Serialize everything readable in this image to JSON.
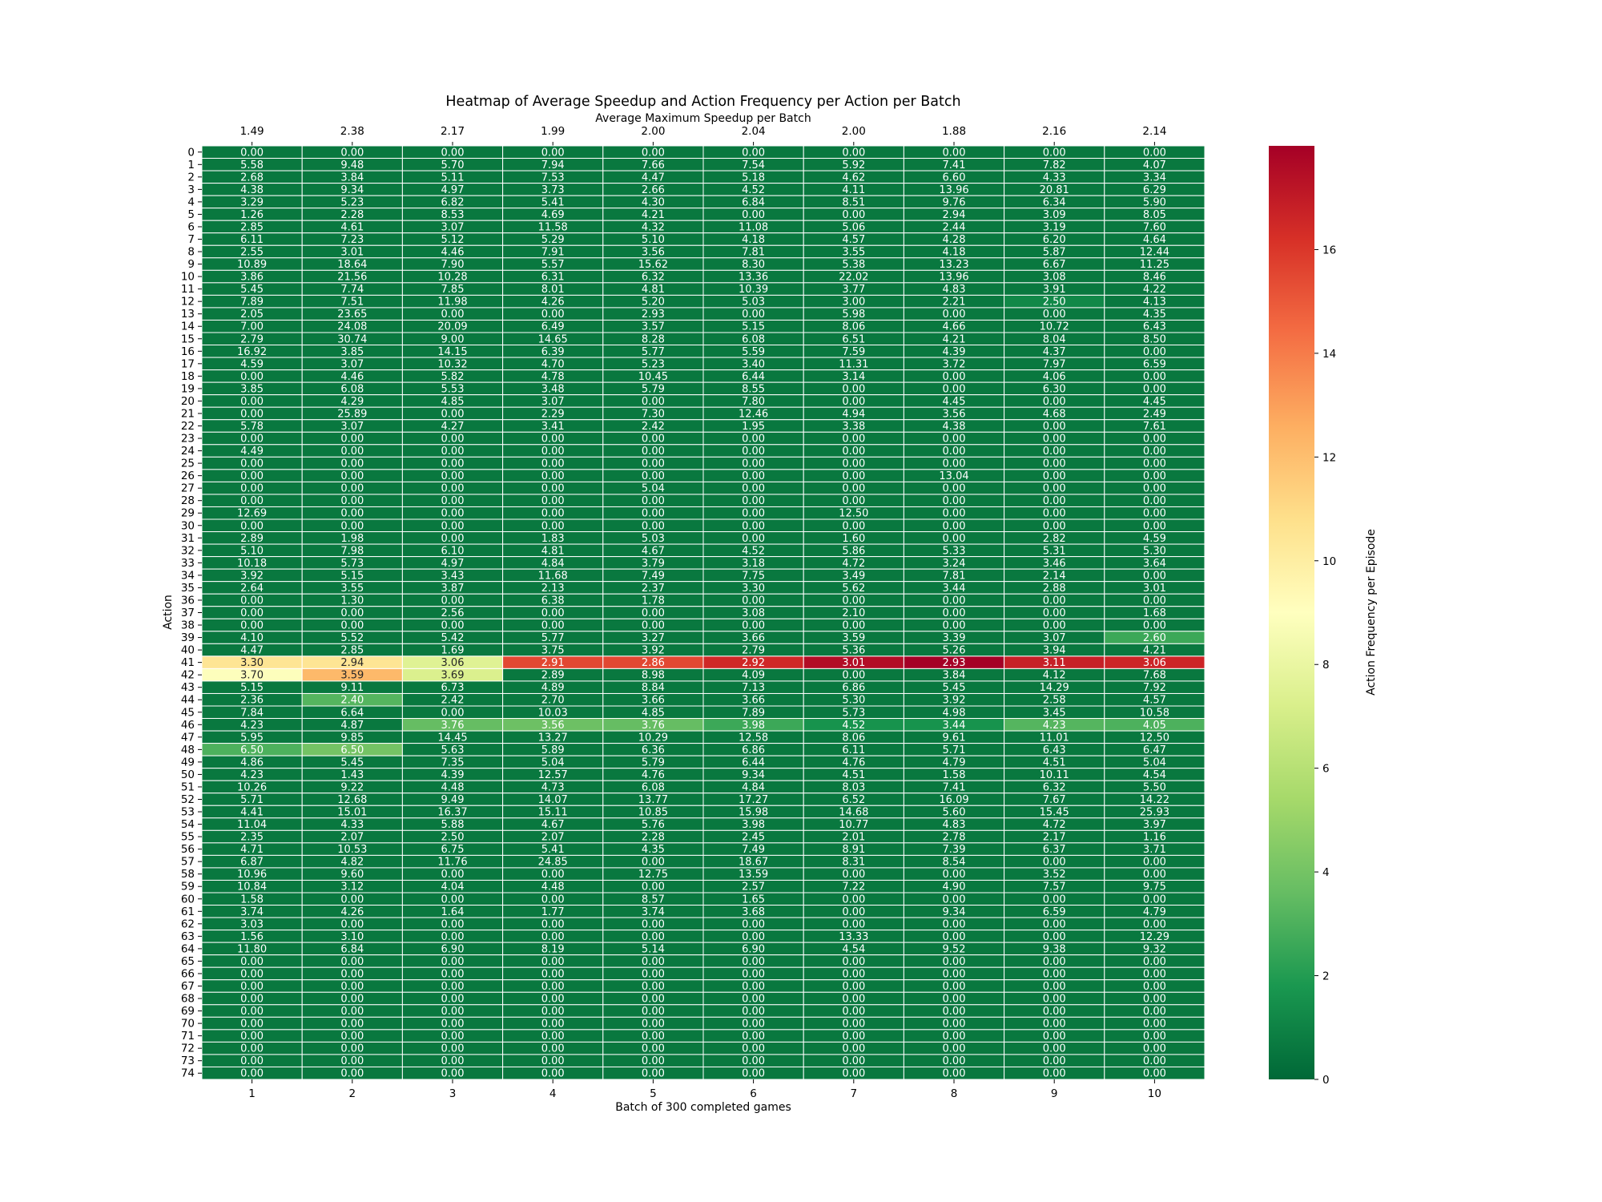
{
  "chart_data": {
    "type": "heatmap",
    "title": "Heatmap of Average Speedup and Action Frequency per Action per Batch",
    "top_axis_label": "Average Maximum Speedup per Batch",
    "top_tick_labels": [
      "1.49",
      "2.38",
      "2.17",
      "1.99",
      "2.00",
      "2.04",
      "2.00",
      "1.88",
      "2.16",
      "2.14"
    ],
    "xlabel": "Batch of 300 completed games",
    "ylabel": "Action",
    "x_categories": [
      "1",
      "2",
      "3",
      "4",
      "5",
      "6",
      "7",
      "8",
      "9",
      "10"
    ],
    "y_categories": [
      "0",
      "1",
      "2",
      "3",
      "4",
      "5",
      "6",
      "7",
      "8",
      "9",
      "10",
      "11",
      "12",
      "13",
      "14",
      "15",
      "16",
      "17",
      "18",
      "19",
      "20",
      "21",
      "22",
      "23",
      "24",
      "25",
      "26",
      "27",
      "28",
      "29",
      "30",
      "31",
      "32",
      "33",
      "34",
      "35",
      "36",
      "37",
      "38",
      "39",
      "40",
      "41",
      "42",
      "43",
      "44",
      "45",
      "46",
      "47",
      "48",
      "49",
      "50",
      "51",
      "52",
      "53",
      "54",
      "55",
      "56",
      "57",
      "58",
      "59",
      "60",
      "61",
      "62",
      "63",
      "64",
      "65",
      "66",
      "67",
      "68",
      "69",
      "70",
      "71",
      "72",
      "73",
      "74"
    ],
    "cell_text": [
      [
        "0.00",
        "0.00",
        "0.00",
        "0.00",
        "0.00",
        "0.00",
        "0.00",
        "0.00",
        "0.00",
        "0.00"
      ],
      [
        "5.58",
        "9.48",
        "5.70",
        "7.94",
        "7.66",
        "7.54",
        "5.92",
        "7.41",
        "7.82",
        "4.07"
      ],
      [
        "2.68",
        "3.84",
        "5.11",
        "7.53",
        "4.47",
        "5.18",
        "4.62",
        "6.60",
        "4.33",
        "3.34"
      ],
      [
        "4.38",
        "9.34",
        "4.97",
        "3.73",
        "2.66",
        "4.52",
        "4.11",
        "13.96",
        "20.81",
        "6.29"
      ],
      [
        "3.29",
        "5.23",
        "6.82",
        "5.41",
        "4.30",
        "6.84",
        "8.51",
        "9.76",
        "6.34",
        "5.90"
      ],
      [
        "1.26",
        "2.28",
        "8.53",
        "4.69",
        "4.21",
        "0.00",
        "0.00",
        "2.94",
        "3.09",
        "8.05"
      ],
      [
        "2.85",
        "4.61",
        "3.07",
        "11.58",
        "4.32",
        "11.08",
        "5.06",
        "2.44",
        "3.19",
        "7.60"
      ],
      [
        "6.11",
        "7.23",
        "5.12",
        "5.29",
        "5.10",
        "4.18",
        "4.57",
        "4.28",
        "6.20",
        "4.64"
      ],
      [
        "2.55",
        "3.01",
        "4.46",
        "7.91",
        "3.56",
        "7.81",
        "3.55",
        "4.18",
        "5.87",
        "12.44"
      ],
      [
        "10.89",
        "18.64",
        "7.90",
        "5.57",
        "15.62",
        "8.30",
        "5.38",
        "13.23",
        "6.67",
        "11.25"
      ],
      [
        "3.86",
        "21.56",
        "10.28",
        "6.31",
        "6.32",
        "13.36",
        "22.02",
        "13.96",
        "3.08",
        "8.46"
      ],
      [
        "5.45",
        "7.74",
        "7.85",
        "8.01",
        "4.81",
        "10.39",
        "3.77",
        "4.83",
        "3.91",
        "4.22"
      ],
      [
        "7.89",
        "7.51",
        "11.98",
        "4.26",
        "5.20",
        "5.03",
        "3.00",
        "2.21",
        "2.50",
        "4.13"
      ],
      [
        "2.05",
        "23.65",
        "0.00",
        "0.00",
        "2.93",
        "0.00",
        "5.98",
        "0.00",
        "0.00",
        "4.35"
      ],
      [
        "7.00",
        "24.08",
        "20.09",
        "6.49",
        "3.57",
        "5.15",
        "8.06",
        "4.66",
        "10.72",
        "6.43"
      ],
      [
        "2.79",
        "30.74",
        "9.00",
        "14.65",
        "8.28",
        "6.08",
        "6.51",
        "4.21",
        "8.04",
        "8.50"
      ],
      [
        "16.92",
        "3.85",
        "14.15",
        "6.39",
        "5.77",
        "5.59",
        "7.59",
        "4.39",
        "4.37",
        "0.00"
      ],
      [
        "4.59",
        "3.07",
        "10.32",
        "4.70",
        "5.23",
        "3.40",
        "11.31",
        "3.72",
        "7.97",
        "6.59"
      ],
      [
        "0.00",
        "4.46",
        "5.82",
        "4.78",
        "10.45",
        "6.44",
        "3.14",
        "0.00",
        "4.06",
        "0.00"
      ],
      [
        "3.85",
        "6.08",
        "5.53",
        "3.48",
        "5.79",
        "8.55",
        "0.00",
        "0.00",
        "6.30",
        "0.00"
      ],
      [
        "0.00",
        "4.29",
        "4.85",
        "3.07",
        "0.00",
        "7.80",
        "0.00",
        "4.45",
        "0.00",
        "4.45"
      ],
      [
        "0.00",
        "25.89",
        "0.00",
        "2.29",
        "7.30",
        "12.46",
        "4.94",
        "3.56",
        "4.68",
        "2.49"
      ],
      [
        "5.78",
        "3.07",
        "4.27",
        "3.41",
        "2.42",
        "1.95",
        "3.38",
        "4.38",
        "0.00",
        "7.61"
      ],
      [
        "0.00",
        "0.00",
        "0.00",
        "0.00",
        "0.00",
        "0.00",
        "0.00",
        "0.00",
        "0.00",
        "0.00"
      ],
      [
        "4.49",
        "0.00",
        "0.00",
        "0.00",
        "0.00",
        "0.00",
        "0.00",
        "0.00",
        "0.00",
        "0.00"
      ],
      [
        "0.00",
        "0.00",
        "0.00",
        "0.00",
        "0.00",
        "0.00",
        "0.00",
        "0.00",
        "0.00",
        "0.00"
      ],
      [
        "0.00",
        "0.00",
        "0.00",
        "0.00",
        "0.00",
        "0.00",
        "0.00",
        "13.04",
        "0.00",
        "0.00"
      ],
      [
        "0.00",
        "0.00",
        "0.00",
        "0.00",
        "5.04",
        "0.00",
        "0.00",
        "0.00",
        "0.00",
        "0.00"
      ],
      [
        "0.00",
        "0.00",
        "0.00",
        "0.00",
        "0.00",
        "0.00",
        "0.00",
        "0.00",
        "0.00",
        "0.00"
      ],
      [
        "12.69",
        "0.00",
        "0.00",
        "0.00",
        "0.00",
        "0.00",
        "12.50",
        "0.00",
        "0.00",
        "0.00"
      ],
      [
        "0.00",
        "0.00",
        "0.00",
        "0.00",
        "0.00",
        "0.00",
        "0.00",
        "0.00",
        "0.00",
        "0.00"
      ],
      [
        "2.89",
        "1.98",
        "0.00",
        "1.83",
        "5.03",
        "0.00",
        "1.60",
        "0.00",
        "2.82",
        "4.59"
      ],
      [
        "5.10",
        "7.98",
        "6.10",
        "4.81",
        "4.67",
        "4.52",
        "5.86",
        "5.33",
        "5.31",
        "5.30"
      ],
      [
        "10.18",
        "5.73",
        "4.97",
        "4.84",
        "3.79",
        "3.18",
        "4.72",
        "3.24",
        "3.46",
        "3.64"
      ],
      [
        "3.92",
        "5.15",
        "3.43",
        "11.68",
        "7.49",
        "7.75",
        "3.49",
        "7.81",
        "2.14",
        "0.00"
      ],
      [
        "2.64",
        "3.55",
        "3.87",
        "2.13",
        "2.37",
        "3.30",
        "5.62",
        "3.44",
        "2.88",
        "3.01"
      ],
      [
        "0.00",
        "1.30",
        "0.00",
        "6.38",
        "1.78",
        "0.00",
        "0.00",
        "0.00",
        "0.00",
        "0.00"
      ],
      [
        "0.00",
        "0.00",
        "2.56",
        "0.00",
        "0.00",
        "3.08",
        "2.10",
        "0.00",
        "0.00",
        "1.68"
      ],
      [
        "0.00",
        "0.00",
        "0.00",
        "0.00",
        "0.00",
        "0.00",
        "0.00",
        "0.00",
        "0.00",
        "0.00"
      ],
      [
        "4.10",
        "5.52",
        "5.42",
        "5.77",
        "3.27",
        "3.66",
        "3.59",
        "3.39",
        "3.07",
        "2.60"
      ],
      [
        "4.47",
        "2.85",
        "1.69",
        "3.75",
        "3.92",
        "2.79",
        "5.36",
        "5.26",
        "3.94",
        "4.21"
      ],
      [
        "3.30",
        "2.94",
        "3.06",
        "2.91",
        "2.86",
        "2.92",
        "3.01",
        "2.93",
        "3.11",
        "3.06"
      ],
      [
        "3.70",
        "3.59",
        "3.69",
        "2.89",
        "8.98",
        "4.09",
        "0.00",
        "3.84",
        "4.12",
        "7.68"
      ],
      [
        "5.15",
        "9.11",
        "6.73",
        "4.89",
        "8.84",
        "7.13",
        "6.86",
        "5.45",
        "14.29",
        "7.92"
      ],
      [
        "2.36",
        "2.40",
        "2.42",
        "2.70",
        "3.66",
        "3.66",
        "5.30",
        "3.92",
        "2.58",
        "4.57"
      ],
      [
        "7.84",
        "6.64",
        "0.00",
        "10.03",
        "4.85",
        "7.89",
        "5.73",
        "4.98",
        "3.45",
        "10.58"
      ],
      [
        "4.23",
        "4.87",
        "3.76",
        "3.56",
        "3.76",
        "3.98",
        "4.52",
        "3.44",
        "4.23",
        "4.05"
      ],
      [
        "5.95",
        "9.85",
        "14.45",
        "13.27",
        "10.29",
        "12.58",
        "8.06",
        "9.61",
        "11.01",
        "12.50"
      ],
      [
        "6.50",
        "6.50",
        "5.63",
        "5.89",
        "6.36",
        "6.86",
        "6.11",
        "5.71",
        "6.43",
        "6.47"
      ],
      [
        "4.86",
        "5.45",
        "7.35",
        "5.04",
        "5.79",
        "6.44",
        "4.76",
        "4.79",
        "4.51",
        "5.04"
      ],
      [
        "4.23",
        "1.43",
        "4.39",
        "12.57",
        "4.76",
        "9.34",
        "4.51",
        "1.58",
        "10.11",
        "4.54"
      ],
      [
        "10.26",
        "9.22",
        "4.48",
        "4.73",
        "6.08",
        "4.84",
        "8.03",
        "7.41",
        "6.32",
        "5.50"
      ],
      [
        "5.71",
        "12.68",
        "9.49",
        "14.07",
        "13.77",
        "17.27",
        "6.52",
        "16.09",
        "7.67",
        "14.22"
      ],
      [
        "4.41",
        "15.01",
        "16.37",
        "15.11",
        "10.85",
        "15.98",
        "14.68",
        "5.60",
        "15.45",
        "25.93"
      ],
      [
        "11.04",
        "4.33",
        "5.88",
        "4.67",
        "5.76",
        "3.98",
        "10.77",
        "4.83",
        "4.72",
        "3.97"
      ],
      [
        "2.35",
        "2.07",
        "2.50",
        "2.07",
        "2.28",
        "2.45",
        "2.01",
        "2.78",
        "2.17",
        "1.16"
      ],
      [
        "4.71",
        "10.53",
        "6.75",
        "5.41",
        "4.35",
        "7.49",
        "8.91",
        "7.39",
        "6.37",
        "3.71"
      ],
      [
        "6.87",
        "4.82",
        "11.76",
        "24.85",
        "0.00",
        "18.67",
        "8.31",
        "8.54",
        "0.00",
        "0.00"
      ],
      [
        "10.96",
        "9.60",
        "0.00",
        "0.00",
        "12.75",
        "13.59",
        "0.00",
        "0.00",
        "3.52",
        "0.00"
      ],
      [
        "10.84",
        "3.12",
        "4.04",
        "4.48",
        "0.00",
        "2.57",
        "7.22",
        "4.90",
        "7.57",
        "9.75"
      ],
      [
        "1.58",
        "0.00",
        "0.00",
        "0.00",
        "8.57",
        "1.65",
        "0.00",
        "0.00",
        "0.00",
        "0.00"
      ],
      [
        "3.74",
        "4.26",
        "1.64",
        "1.77",
        "3.74",
        "3.68",
        "0.00",
        "9.34",
        "6.59",
        "4.79"
      ],
      [
        "3.03",
        "0.00",
        "0.00",
        "0.00",
        "0.00",
        "0.00",
        "0.00",
        "0.00",
        "0.00",
        "0.00"
      ],
      [
        "1.56",
        "3.10",
        "0.00",
        "0.00",
        "0.00",
        "0.00",
        "13.33",
        "0.00",
        "0.00",
        "12.29"
      ],
      [
        "11.80",
        "6.84",
        "6.90",
        "8.19",
        "5.14",
        "6.90",
        "4.54",
        "9.52",
        "9.38",
        "9.32"
      ],
      [
        "0.00",
        "0.00",
        "0.00",
        "0.00",
        "0.00",
        "0.00",
        "0.00",
        "0.00",
        "0.00",
        "0.00"
      ],
      [
        "0.00",
        "0.00",
        "0.00",
        "0.00",
        "0.00",
        "0.00",
        "0.00",
        "0.00",
        "0.00",
        "0.00"
      ],
      [
        "0.00",
        "0.00",
        "0.00",
        "0.00",
        "0.00",
        "0.00",
        "0.00",
        "0.00",
        "0.00",
        "0.00"
      ],
      [
        "0.00",
        "0.00",
        "0.00",
        "0.00",
        "0.00",
        "0.00",
        "0.00",
        "0.00",
        "0.00",
        "0.00"
      ],
      [
        "0.00",
        "0.00",
        "0.00",
        "0.00",
        "0.00",
        "0.00",
        "0.00",
        "0.00",
        "0.00",
        "0.00"
      ],
      [
        "0.00",
        "0.00",
        "0.00",
        "0.00",
        "0.00",
        "0.00",
        "0.00",
        "0.00",
        "0.00",
        "0.00"
      ],
      [
        "0.00",
        "0.00",
        "0.00",
        "0.00",
        "0.00",
        "0.00",
        "0.00",
        "0.00",
        "0.00",
        "0.00"
      ],
      [
        "0.00",
        "0.00",
        "0.00",
        "0.00",
        "0.00",
        "0.00",
        "0.00",
        "0.00",
        "0.00",
        "0.00"
      ],
      [
        "0.00",
        "0.00",
        "0.00",
        "0.00",
        "0.00",
        "0.00",
        "0.00",
        "0.00",
        "0.00",
        "0.00"
      ],
      [
        "0.00",
        "0.00",
        "0.00",
        "0.00",
        "0.00",
        "0.00",
        "0.00",
        "0.00",
        "0.00",
        "0.00"
      ]
    ],
    "color_value_overrides": {
      "41": [
        10.5,
        10.5,
        7.5,
        15.5,
        15.5,
        16.5,
        17.5,
        18.0,
        16.8,
        16.6
      ],
      "42": [
        8.9,
        12.2,
        7.3,
        0.6,
        0.6,
        0.6,
        0.6,
        0.6,
        0.6,
        0.6
      ],
      "44": [
        0.6,
        3.2,
        0.6,
        0.6,
        0.6,
        0.6,
        0.6,
        0.6,
        0.6,
        0.6
      ],
      "46": [
        0.6,
        0.6,
        3.6,
        3.8,
        3.6,
        2.6,
        1.6,
        1.6,
        3.2,
        3.0
      ],
      "48": [
        3.0,
        4.0,
        0.6,
        0.6,
        0.6,
        0.6,
        0.6,
        0.6,
        0.6,
        0.6
      ],
      "39": [
        0.6,
        0.6,
        0.6,
        0.6,
        0.6,
        0.6,
        0.6,
        0.6,
        0.6,
        2.6
      ],
      "12": [
        0.6,
        0.6,
        0.6,
        0.6,
        0.6,
        0.6,
        0.6,
        0.6,
        1.2,
        0.6
      ]
    },
    "default_color_value": 0.6,
    "colorbar": {
      "label": "Action Frequency per Episode",
      "min": 0,
      "max": 18,
      "ticks": [
        0,
        2,
        4,
        6,
        8,
        10,
        12,
        14,
        16
      ],
      "colormap": "RdYlGn_r"
    }
  }
}
